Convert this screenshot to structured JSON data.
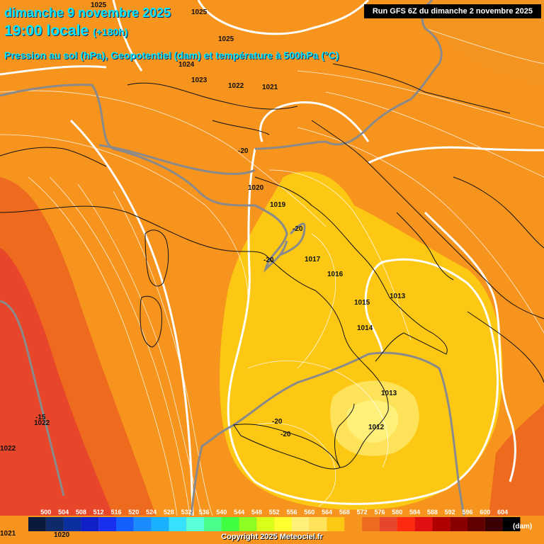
{
  "header": {
    "date_line": "dimanche 9 novembre 2025",
    "time_main": "19:00 locale",
    "time_offset": "(+180h)",
    "subtitle": "Pression au sol (hPa), Geopotentiel (dam) et température à 500hPa (°C)",
    "run": "Run GFS 6Z du dimanche 2 novembre 2025"
  },
  "footer": {
    "copyright": "Copyright 2025 Meteociel.fr"
  },
  "colors": {
    "orange": "#f7941d",
    "dark_orange": "#ee6a1e",
    "red_orange": "#e8462a",
    "red": "#e03a2f",
    "yellow": "#fcc814",
    "light_yellow": "#fde25a",
    "pale_yellow": "#fff07a",
    "cyan_text": "#00e8ff"
  },
  "isobar_labels": [
    "1025",
    "1025",
    "1025",
    "1024",
    "1023",
    "1022",
    "1021",
    "1020",
    "1019",
    "1017",
    "1016",
    "1015",
    "1014",
    "1013",
    "1013",
    "1012",
    "1022",
    "1022",
    "1021",
    "1020"
  ],
  "temperature_labels": [
    "-20",
    "-20",
    "-20",
    "-20",
    "-20",
    "-15"
  ],
  "legend": {
    "unit": "(dam)",
    "values": [
      "500",
      "504",
      "508",
      "512",
      "516",
      "520",
      "524",
      "528",
      "532",
      "536",
      "540",
      "544",
      "548",
      "552",
      "556",
      "560",
      "564",
      "568",
      "572",
      "576",
      "580",
      "584",
      "588",
      "592",
      "596",
      "600",
      "604"
    ],
    "swatches": [
      "#0a1a3a",
      "#0d2a6a",
      "#0a2f9e",
      "#1020c8",
      "#1a30f0",
      "#1460ff",
      "#1a8cff",
      "#18b0ff",
      "#38e0ff",
      "#5cffd8",
      "#4cff8c",
      "#40ff40",
      "#8cff20",
      "#d8ff1a",
      "#ffff30",
      "#fff07a",
      "#fde25a",
      "#fcc814",
      "#f7941d",
      "#ee6a1e",
      "#e8462a",
      "#ff2a10",
      "#e01010",
      "#b00000",
      "#8a0000",
      "#600000",
      "#3a0000",
      "#000000"
    ]
  }
}
